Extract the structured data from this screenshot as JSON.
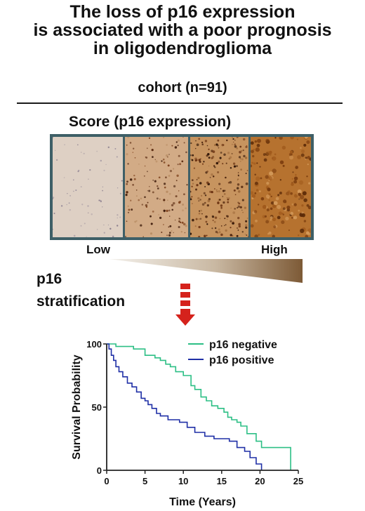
{
  "title": {
    "line1": "The loss of p16 expression",
    "line2": "is associated with a poor prognosis",
    "line3": "in oligodendroglioma"
  },
  "cohort_label": "cohort (n=91)",
  "score_title": "Score (p16 expression)",
  "score_scale": {
    "low_label": "Low",
    "high_label": "High",
    "panel_count": 4
  },
  "colors": {
    "frame": "#3e5f67",
    "negative": "#2cbf85",
    "positive": "#1f2fa6",
    "arrow": "#d5221c",
    "wedge_dark": "#7d5a36"
  },
  "stratification": {
    "line1": "p16",
    "line2": "stratification"
  },
  "chart_data": {
    "type": "line",
    "xlabel": "Time  (Years)",
    "ylabel": "Survival Probability",
    "xlim": [
      0,
      25
    ],
    "ylim": [
      0,
      100
    ],
    "x_ticks": [
      "0",
      "5",
      "10",
      "15",
      "20",
      "25"
    ],
    "y_ticks": [
      "0",
      "50",
      "100"
    ],
    "legend_position": "top-right",
    "series": [
      {
        "name": "p16 negative",
        "color": "#2cbf85",
        "steps": [
          [
            0,
            100
          ],
          [
            1.2,
            98
          ],
          [
            3.5,
            96
          ],
          [
            5.0,
            91
          ],
          [
            6.3,
            89
          ],
          [
            7.0,
            87
          ],
          [
            7.7,
            84
          ],
          [
            8.3,
            82
          ],
          [
            9.0,
            78
          ],
          [
            10.0,
            75
          ],
          [
            11.0,
            67
          ],
          [
            11.5,
            64
          ],
          [
            12.3,
            58
          ],
          [
            13.0,
            55
          ],
          [
            13.7,
            51
          ],
          [
            14.5,
            49
          ],
          [
            15.3,
            46
          ],
          [
            15.8,
            42
          ],
          [
            16.3,
            40
          ],
          [
            17.0,
            38
          ],
          [
            17.5,
            35
          ],
          [
            18.3,
            29
          ],
          [
            19.5,
            23
          ],
          [
            20.2,
            18
          ],
          [
            24.0,
            0
          ]
        ],
        "end_x": 24.0
      },
      {
        "name": "p16 positive",
        "color": "#1f2fa6",
        "steps": [
          [
            0,
            100
          ],
          [
            0.3,
            96
          ],
          [
            0.6,
            91
          ],
          [
            0.9,
            87
          ],
          [
            1.2,
            82
          ],
          [
            1.6,
            78
          ],
          [
            2.1,
            74
          ],
          [
            2.7,
            69
          ],
          [
            3.3,
            66
          ],
          [
            3.9,
            62
          ],
          [
            4.5,
            57
          ],
          [
            5.0,
            55
          ],
          [
            5.4,
            52
          ],
          [
            5.9,
            49
          ],
          [
            6.5,
            45
          ],
          [
            7.0,
            43
          ],
          [
            8.0,
            40
          ],
          [
            9.5,
            38
          ],
          [
            10.5,
            34
          ],
          [
            11.5,
            30
          ],
          [
            12.8,
            27
          ],
          [
            14.0,
            25
          ],
          [
            16.0,
            23
          ],
          [
            17.0,
            18
          ],
          [
            18.0,
            15
          ],
          [
            18.7,
            10
          ],
          [
            19.5,
            5
          ],
          [
            20.2,
            0
          ]
        ],
        "end_x": 20.2
      }
    ]
  }
}
